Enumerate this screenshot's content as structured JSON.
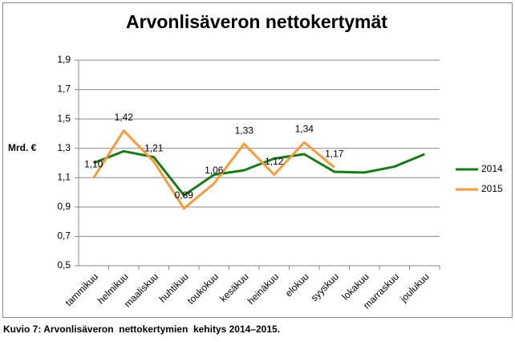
{
  "chart_data": {
    "type": "line",
    "title": "Arvonlisäveron nettokertymät",
    "y_label": "Mrd. €",
    "caption": "Kuvio 7: Arvonlisäveron  nettokertymien  kehitys 2014–2015.",
    "categories": [
      "tammikuu",
      "helmikuu",
      "maaliskuu",
      "huhtikuu",
      "toukokuu",
      "kesäkuu",
      "heinäkuu",
      "elokuu",
      "syyskuu",
      "lokakuu",
      "marraskuu",
      "joulukuu"
    ],
    "series": [
      {
        "name": "2014",
        "color": "#1a7a1a",
        "values": [
          1.2,
          1.28,
          1.24,
          0.98,
          1.12,
          1.15,
          1.23,
          1.26,
          1.14,
          1.135,
          1.175,
          1.26
        ]
      },
      {
        "name": "2015",
        "color": "#f79a3a",
        "values": [
          1.1,
          1.42,
          1.21,
          0.89,
          1.06,
          1.33,
          1.12,
          1.34,
          1.17,
          null,
          null,
          null
        ],
        "value_labels": [
          "1,10",
          "1,42",
          "1,21",
          "0,89",
          "1,06",
          "1,33",
          "1,12",
          "1,34",
          "1,17",
          null,
          null,
          null
        ]
      }
    ],
    "ylim": [
      0.5,
      1.9
    ],
    "yticks": [
      {
        "value": 0.5,
        "label": "0,5"
      },
      {
        "value": 0.7,
        "label": "0,7"
      },
      {
        "value": 0.9,
        "label": "0,9"
      },
      {
        "value": 1.1,
        "label": "1,1"
      },
      {
        "value": 1.3,
        "label": "1,3"
      },
      {
        "value": 1.5,
        "label": "1,5"
      },
      {
        "value": 1.7,
        "label": "1,7"
      },
      {
        "value": 1.9,
        "label": "1,9"
      }
    ],
    "grid": true,
    "legend": "right"
  }
}
